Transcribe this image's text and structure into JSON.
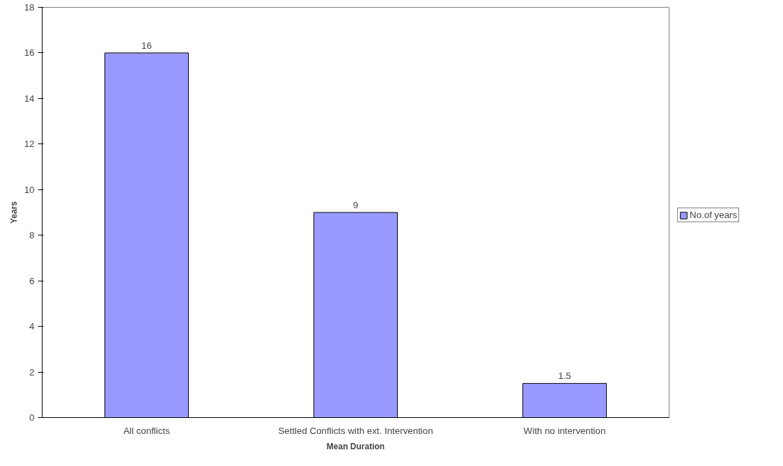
{
  "chart_data": {
    "type": "bar",
    "xlabel": "Mean Duration",
    "ylabel": "Years",
    "categories": [
      "All conflicts",
      "Settled Conflicts with ext. Intervention",
      "With no intervention"
    ],
    "series": [
      {
        "name": "No.of years",
        "color": "#9999ff",
        "values": [
          16,
          9,
          1.5
        ]
      }
    ],
    "ylim": [
      0,
      18
    ],
    "yticks": [
      0,
      2,
      4,
      6,
      8,
      10,
      12,
      14,
      16,
      18
    ],
    "data_labels": true,
    "grid": false,
    "legend": "right"
  }
}
